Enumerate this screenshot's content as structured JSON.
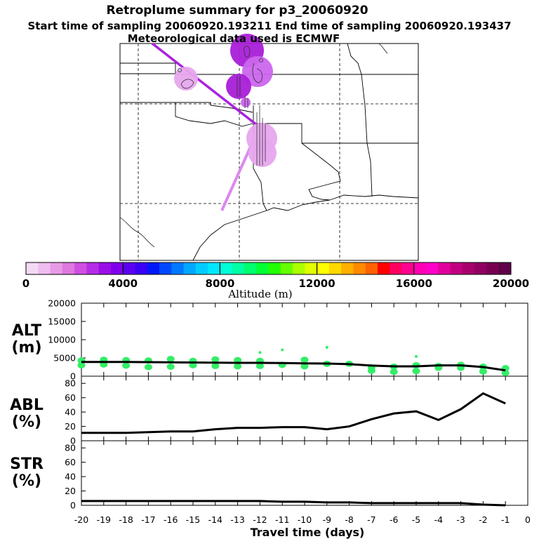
{
  "header": {
    "title": "Retroplume summary for p3_20060920",
    "sampling_line": "Start time of sampling 20060920.193211     End time of sampling 20060920.193437",
    "met_line": "Meteorological data used is ECMWF"
  },
  "colors": {
    "scale": [
      "#f4d9f4",
      "#efbdef",
      "#e79be7",
      "#df78df",
      "#cf4fe1",
      "#b52de5",
      "#9a0fe7",
      "#8000ee",
      "#5a00f0",
      "#3b00f5",
      "#0018f8",
      "#0048ff",
      "#0078ff",
      "#00a8ff",
      "#00ccff",
      "#00e8ff",
      "#00ffd8",
      "#00ffa4",
      "#00ff6c",
      "#00ff33",
      "#22ff00",
      "#66ff00",
      "#aaff00",
      "#e0ff00",
      "#ffff00",
      "#ffd800",
      "#ffb000",
      "#ff8a00",
      "#ff6200",
      "#ff0000",
      "#ff0060",
      "#ff0090",
      "#ff00b4",
      "#ff00c8",
      "#e0009c",
      "#c00080",
      "#a8006c",
      "#900060",
      "#780050",
      "#600048"
    ],
    "series_line": "#000000",
    "alt_dots": "#33ee66",
    "plume_dark": "#a91fd8",
    "plume_mid": "#cc66ee",
    "plume_light": "#e7a6ee",
    "track_light": "#dd88ee",
    "track_dark": "#aa22dd"
  },
  "colorbar": {
    "label": "Altitude (m)",
    "min": 0,
    "max": 20000,
    "tick_values": [
      0,
      4000,
      8000,
      12000,
      16000,
      20000
    ],
    "tick_labels": [
      "0",
      "4000",
      "8000",
      "12000",
      "16000",
      "20000"
    ]
  },
  "x_axis": {
    "label": "Travel time (days)",
    "range": [
      -20,
      0
    ],
    "ticks": [
      -20,
      -19,
      -18,
      -17,
      -16,
      -15,
      -14,
      -13,
      -12,
      -11,
      -10,
      -9,
      -8,
      -7,
      -6,
      -5,
      -4,
      -3,
      -2,
      -1,
      0
    ],
    "tick_labels": [
      "-20",
      "-19",
      "-18",
      "-17",
      "-16",
      "-15",
      "-14",
      "-13",
      "-12",
      "-11",
      "-10",
      "-9",
      "-8",
      "-7",
      "-6",
      "-5",
      "-4",
      "-3",
      "-2",
      "-1",
      "0"
    ]
  },
  "chart_data": [
    {
      "type": "line",
      "title": "ALT",
      "ylabel": "(m)",
      "ylim": [
        0,
        20000
      ],
      "yticks": [
        0,
        5000,
        10000,
        15000,
        20000
      ],
      "ytick_labels": [
        "0",
        "5000",
        "10000",
        "15000",
        "20000"
      ],
      "x": [
        -20,
        -19,
        -18,
        -17,
        -16,
        -15,
        -14,
        -13,
        -12,
        -11,
        -10,
        -9,
        -8,
        -7,
        -6,
        -5,
        -4,
        -3,
        -2,
        -1
      ],
      "values": [
        3900,
        3900,
        3900,
        3850,
        3800,
        3750,
        3700,
        3650,
        3650,
        3600,
        3500,
        3450,
        3300,
        2900,
        2700,
        2700,
        2950,
        2950,
        2500,
        1600
      ],
      "scatter_points": [
        {
          "x": -20,
          "y": 3000
        },
        {
          "x": -20,
          "y": 4300
        },
        {
          "x": -19,
          "y": 3200
        },
        {
          "x": -19,
          "y": 4500
        },
        {
          "x": -18,
          "y": 2900
        },
        {
          "x": -18,
          "y": 4400
        },
        {
          "x": -17,
          "y": 2500
        },
        {
          "x": -17,
          "y": 4300
        },
        {
          "x": -16,
          "y": 2600
        },
        {
          "x": -16,
          "y": 4700
        },
        {
          "x": -15,
          "y": 3000
        },
        {
          "x": -15,
          "y": 4200
        },
        {
          "x": -14,
          "y": 2800
        },
        {
          "x": -14,
          "y": 4600
        },
        {
          "x": -13,
          "y": 2700
        },
        {
          "x": -13,
          "y": 4400
        },
        {
          "x": -12,
          "y": 2800
        },
        {
          "x": -12,
          "y": 4200
        },
        {
          "x": -12,
          "y": 6500
        },
        {
          "x": -11,
          "y": 3100
        },
        {
          "x": -11,
          "y": 7200
        },
        {
          "x": -10,
          "y": 2700
        },
        {
          "x": -10,
          "y": 4500
        },
        {
          "x": -9,
          "y": 3400
        },
        {
          "x": -9,
          "y": 7900
        },
        {
          "x": -8,
          "y": 3400
        },
        {
          "x": -7,
          "y": 2400
        },
        {
          "x": -7,
          "y": 1500
        },
        {
          "x": -6,
          "y": 2600
        },
        {
          "x": -6,
          "y": 1200
        },
        {
          "x": -5,
          "y": 3000
        },
        {
          "x": -5,
          "y": 1400
        },
        {
          "x": -5,
          "y": 5400
        },
        {
          "x": -4,
          "y": 2800
        },
        {
          "x": -4,
          "y": 2300
        },
        {
          "x": -3,
          "y": 3100
        },
        {
          "x": -3,
          "y": 2300
        },
        {
          "x": -2,
          "y": 1300
        },
        {
          "x": -2,
          "y": 2600
        },
        {
          "x": -1,
          "y": 900
        },
        {
          "x": -1,
          "y": 2200
        }
      ]
    },
    {
      "type": "line",
      "title": "ABL",
      "ylabel": "(%)",
      "ylim": [
        0,
        90
      ],
      "yticks": [
        0,
        20,
        40,
        60,
        80
      ],
      "ytick_labels": [
        "0",
        "20",
        "40",
        "60",
        "80"
      ],
      "x": [
        -20,
        -19,
        -18,
        -17,
        -16,
        -15,
        -14,
        -13,
        -12,
        -11,
        -10,
        -9,
        -8,
        -7,
        -6,
        -5,
        -4,
        -3,
        -2,
        -1
      ],
      "values": [
        11,
        11,
        11,
        12,
        13,
        13,
        16,
        18,
        18,
        19,
        19,
        16,
        20,
        30,
        38,
        41,
        29,
        44,
        66,
        52
      ]
    },
    {
      "type": "line",
      "title": "STR",
      "ylabel": "(%)",
      "ylim": [
        0,
        90
      ],
      "yticks": [
        0,
        20,
        40,
        60,
        80
      ],
      "ytick_labels": [
        "0",
        "20",
        "40",
        "60",
        "80"
      ],
      "x": [
        -20,
        -19,
        -18,
        -17,
        -16,
        -15,
        -14,
        -13,
        -12,
        -11,
        -10,
        -9,
        -8,
        -7,
        -6,
        -5,
        -4,
        -3,
        -2,
        -1
      ],
      "values": [
        6,
        6,
        6,
        6,
        6,
        6,
        6,
        6,
        6,
        5,
        5,
        4,
        4,
        3,
        3,
        3,
        3,
        3,
        1,
        0
      ]
    }
  ]
}
